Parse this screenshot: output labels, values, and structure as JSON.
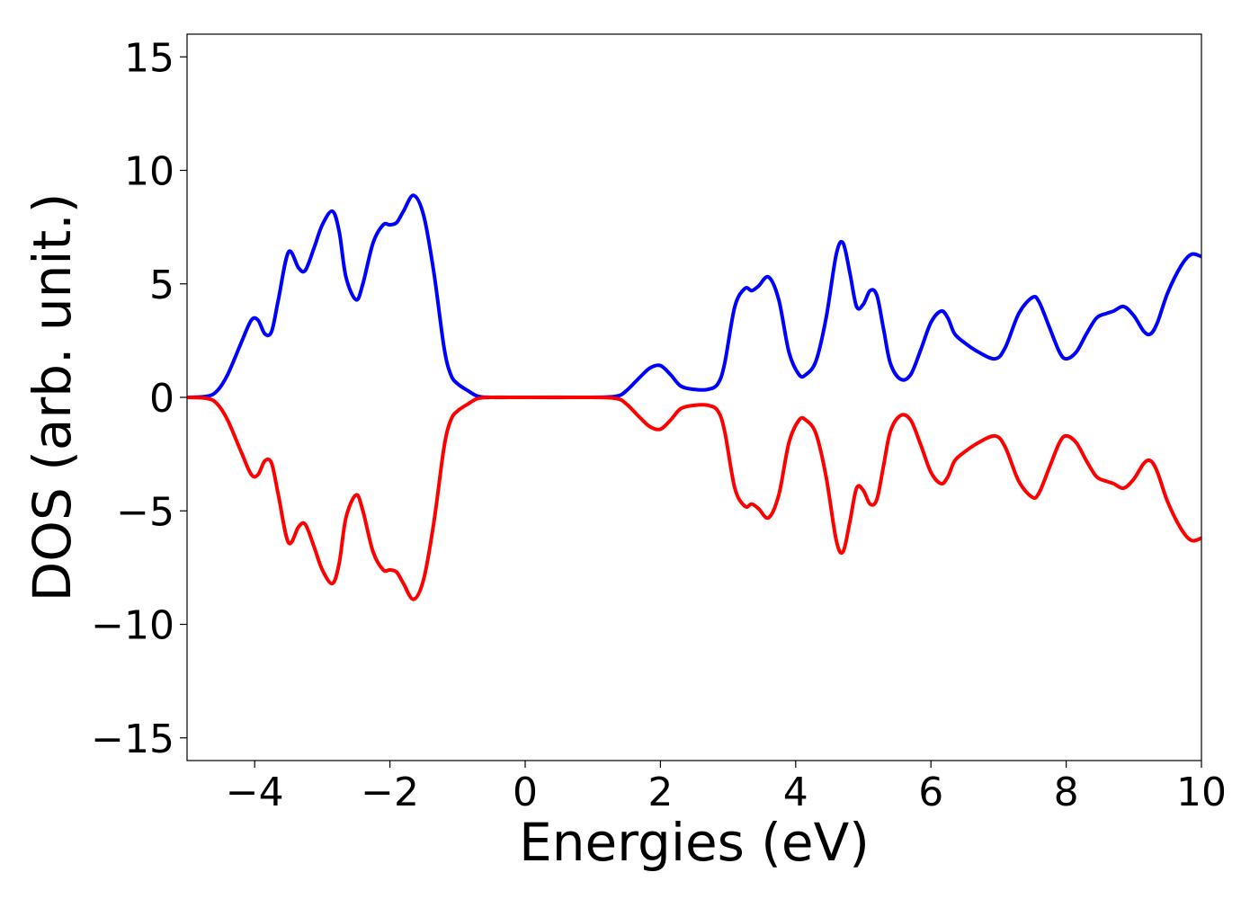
{
  "chart_data": {
    "type": "line",
    "title": "",
    "xlabel": "Energies (eV)",
    "ylabel": "DOS (arb. unit.)",
    "xlim": [
      -5,
      10
    ],
    "ylim": [
      -16,
      16
    ],
    "grid": false,
    "legend": "none",
    "xticks": [
      -4,
      -2,
      0,
      2,
      4,
      6,
      8,
      10
    ],
    "xtick_labels": [
      "−4",
      "−2",
      "0",
      "2",
      "4",
      "6",
      "8",
      "10"
    ],
    "yticks": [
      -15,
      -10,
      -5,
      0,
      5,
      10,
      15
    ],
    "ytick_labels": [
      "−15",
      "−10",
      "−5",
      "0",
      "5",
      "10",
      "15"
    ],
    "series": [
      {
        "color": "#0000ff",
        "x": [
          -5.0,
          -4.7,
          -4.55,
          -4.4,
          -4.2,
          -4.05,
          -3.95,
          -3.85,
          -3.75,
          -3.65,
          -3.5,
          -3.35,
          -3.25,
          -3.12,
          -3.0,
          -2.85,
          -2.75,
          -2.65,
          -2.5,
          -2.4,
          -2.25,
          -2.1,
          -2.0,
          -1.9,
          -1.8,
          -1.65,
          -1.5,
          -1.35,
          -1.2,
          -1.1,
          -1.0,
          -0.85,
          -0.7,
          -0.5,
          0.0,
          1.0,
          1.35,
          1.5,
          1.7,
          1.85,
          2.0,
          2.15,
          2.3,
          2.5,
          2.7,
          2.85,
          2.95,
          3.1,
          3.25,
          3.35,
          3.45,
          3.6,
          3.75,
          3.9,
          4.05,
          4.15,
          4.3,
          4.45,
          4.6,
          4.7,
          4.8,
          4.9,
          5.0,
          5.1,
          5.2,
          5.3,
          5.4,
          5.55,
          5.7,
          5.85,
          6.0,
          6.15,
          6.25,
          6.35,
          6.5,
          6.7,
          6.95,
          7.1,
          7.3,
          7.5,
          7.6,
          7.75,
          7.9,
          8.0,
          8.15,
          8.3,
          8.45,
          8.6,
          8.7,
          8.85,
          9.0,
          9.15,
          9.25,
          9.35,
          9.5,
          9.7,
          9.85,
          10.0
        ],
        "y": [
          0.0,
          0.05,
          0.3,
          1.0,
          2.4,
          3.4,
          3.4,
          2.8,
          2.9,
          4.3,
          6.4,
          5.7,
          5.6,
          6.6,
          7.6,
          8.2,
          7.3,
          5.3,
          4.3,
          5.0,
          6.8,
          7.6,
          7.6,
          7.7,
          8.2,
          8.9,
          8.0,
          5.5,
          2.2,
          1.0,
          0.6,
          0.3,
          0.05,
          0.0,
          0.0,
          0.0,
          0.05,
          0.3,
          0.9,
          1.3,
          1.4,
          1.0,
          0.5,
          0.35,
          0.35,
          0.6,
          1.5,
          4.0,
          4.8,
          4.7,
          4.9,
          5.3,
          4.3,
          2.0,
          1.0,
          1.0,
          1.6,
          3.5,
          6.3,
          6.8,
          5.5,
          4.0,
          4.1,
          4.7,
          4.5,
          3.0,
          1.5,
          0.8,
          1.0,
          2.1,
          3.3,
          3.8,
          3.5,
          2.8,
          2.4,
          2.0,
          1.7,
          2.2,
          3.7,
          4.4,
          4.2,
          3.1,
          2.0,
          1.7,
          2.0,
          2.8,
          3.5,
          3.7,
          3.8,
          4.0,
          3.6,
          2.9,
          2.8,
          3.3,
          4.6,
          5.8,
          6.3,
          6.2
        ]
      },
      {
        "color": "#ff0000",
        "x": [
          -5.0,
          -4.7,
          -4.55,
          -4.4,
          -4.2,
          -4.05,
          -3.95,
          -3.85,
          -3.75,
          -3.65,
          -3.5,
          -3.35,
          -3.25,
          -3.12,
          -3.0,
          -2.85,
          -2.75,
          -2.65,
          -2.5,
          -2.4,
          -2.25,
          -2.1,
          -2.0,
          -1.9,
          -1.8,
          -1.65,
          -1.5,
          -1.35,
          -1.2,
          -1.1,
          -1.0,
          -0.85,
          -0.7,
          -0.5,
          0.0,
          1.0,
          1.35,
          1.5,
          1.7,
          1.85,
          2.0,
          2.15,
          2.3,
          2.5,
          2.7,
          2.85,
          2.95,
          3.1,
          3.25,
          3.35,
          3.45,
          3.6,
          3.75,
          3.9,
          4.05,
          4.15,
          4.3,
          4.45,
          4.6,
          4.7,
          4.8,
          4.9,
          5.0,
          5.1,
          5.2,
          5.3,
          5.4,
          5.55,
          5.7,
          5.85,
          6.0,
          6.15,
          6.25,
          6.35,
          6.5,
          6.7,
          6.95,
          7.1,
          7.3,
          7.5,
          7.6,
          7.75,
          7.9,
          8.0,
          8.15,
          8.3,
          8.45,
          8.6,
          8.7,
          8.85,
          9.0,
          9.15,
          9.25,
          9.35,
          9.5,
          9.7,
          9.85,
          10.0
        ],
        "y": [
          0.0,
          -0.05,
          -0.3,
          -1.0,
          -2.4,
          -3.4,
          -3.4,
          -2.8,
          -2.9,
          -4.3,
          -6.4,
          -5.7,
          -5.6,
          -6.6,
          -7.6,
          -8.2,
          -7.3,
          -5.3,
          -4.3,
          -5.0,
          -6.8,
          -7.6,
          -7.6,
          -7.7,
          -8.2,
          -8.9,
          -8.0,
          -5.5,
          -2.2,
          -1.0,
          -0.6,
          -0.3,
          -0.05,
          0.0,
          0.0,
          0.0,
          -0.05,
          -0.3,
          -0.9,
          -1.3,
          -1.4,
          -1.0,
          -0.5,
          -0.35,
          -0.35,
          -0.6,
          -1.5,
          -4.0,
          -4.8,
          -4.7,
          -4.9,
          -5.3,
          -4.3,
          -2.0,
          -1.0,
          -1.0,
          -1.6,
          -3.5,
          -6.3,
          -6.8,
          -5.5,
          -4.0,
          -4.1,
          -4.7,
          -4.5,
          -3.0,
          -1.5,
          -0.8,
          -1.0,
          -2.1,
          -3.3,
          -3.8,
          -3.5,
          -2.8,
          -2.4,
          -2.0,
          -1.7,
          -2.2,
          -3.7,
          -4.4,
          -4.2,
          -3.1,
          -2.0,
          -1.7,
          -2.0,
          -2.8,
          -3.5,
          -3.7,
          -3.8,
          -4.0,
          -3.6,
          -2.9,
          -2.8,
          -3.3,
          -4.6,
          -5.8,
          -6.3,
          -6.2
        ]
      }
    ]
  }
}
